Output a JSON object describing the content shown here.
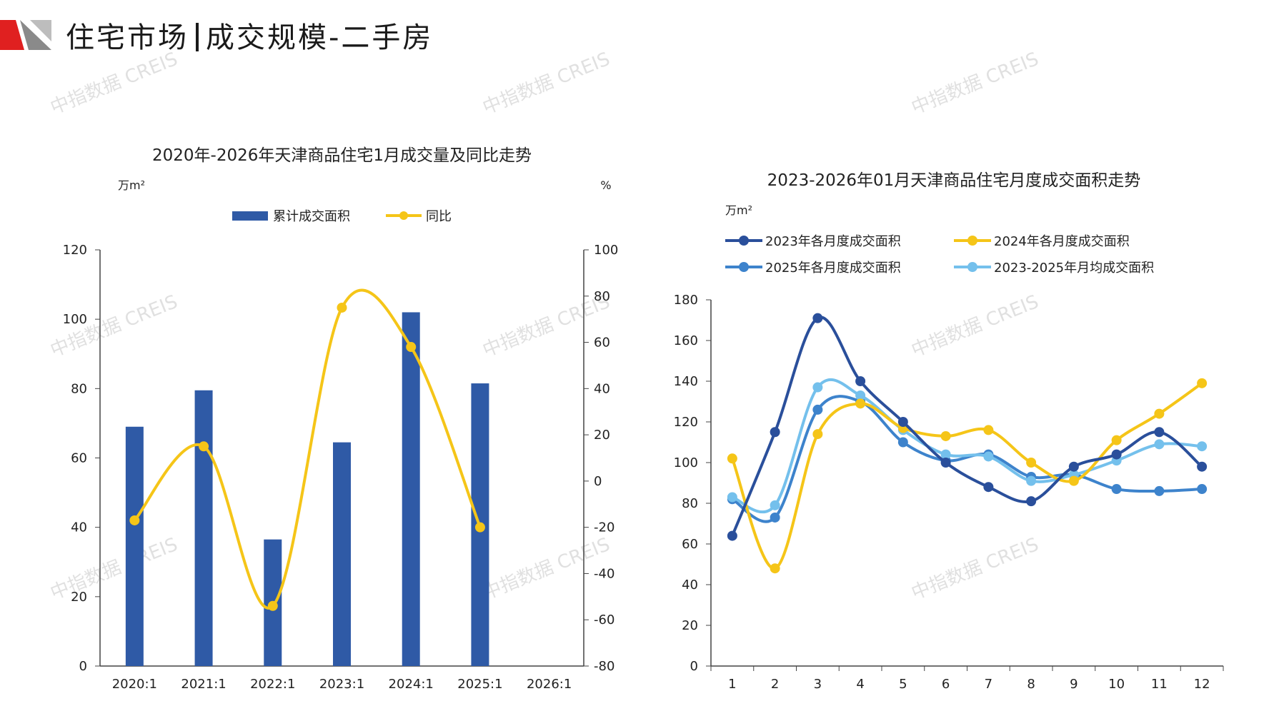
{
  "page": {
    "title_left": "住宅市场",
    "title_right": "成交规模-二手房",
    "watermark": "中指数据 CREIS",
    "colors": {
      "brand_red": "#e02020",
      "brand_gray": "#8a8a8a"
    }
  },
  "chart_data": [
    {
      "type": "bar",
      "title": "2020年-2026年天津商品住宅1月成交量及同比走势",
      "ylabel_left": "万m²",
      "ylabel_right": "%",
      "categories": [
        "2020:1",
        "2021:1",
        "2022:1",
        "2023:1",
        "2024:1",
        "2025:1",
        "2026:1"
      ],
      "series": [
        {
          "name": "累计成交面积",
          "kind": "bar",
          "axis": "left",
          "color": "#2f5aa6",
          "values": [
            69,
            79.5,
            36.5,
            64.5,
            102,
            81.5,
            null
          ]
        },
        {
          "name": "同比",
          "kind": "line",
          "axis": "right",
          "color": "#f5c518",
          "values": [
            -17,
            15,
            -54,
            75,
            58,
            -20,
            null
          ]
        }
      ],
      "ylim_left": [
        0,
        120
      ],
      "yticks_left": [
        0,
        20,
        40,
        60,
        80,
        100,
        120
      ],
      "ylim_right": [
        -80,
        100
      ],
      "yticks_right": [
        -80,
        -60,
        -40,
        -20,
        0,
        20,
        40,
        60,
        80,
        100
      ]
    },
    {
      "type": "line",
      "title": "2023-2026年01月天津商品住宅月度成交面积走势",
      "ylabel": "万m²",
      "x": [
        1,
        2,
        3,
        4,
        5,
        6,
        7,
        8,
        9,
        10,
        11,
        12
      ],
      "series": [
        {
          "name": "2023年各月度成交面积",
          "color": "#2a4f9b",
          "values": [
            64,
            115,
            171,
            140,
            120,
            100,
            88,
            81,
            98,
            104,
            115,
            98
          ]
        },
        {
          "name": "2024年各月度成交面积",
          "color": "#f5c518",
          "values": [
            102,
            48,
            114,
            129,
            117,
            113,
            116,
            100,
            91,
            111,
            124,
            139
          ]
        },
        {
          "name": "2025年各月度成交面积",
          "color": "#3d83cc",
          "values": [
            82,
            73,
            126,
            130,
            110,
            101,
            104,
            93,
            94,
            87,
            86,
            87
          ]
        },
        {
          "name": "2023-2025年月均成交面积",
          "color": "#74c0ec",
          "values": [
            83,
            79,
            137,
            133,
            116,
            104,
            103,
            91,
            94,
            101,
            109,
            108
          ]
        }
      ],
      "ylim": [
        0,
        180
      ],
      "yticks": [
        0,
        20,
        40,
        60,
        80,
        100,
        120,
        140,
        160,
        180
      ]
    }
  ]
}
